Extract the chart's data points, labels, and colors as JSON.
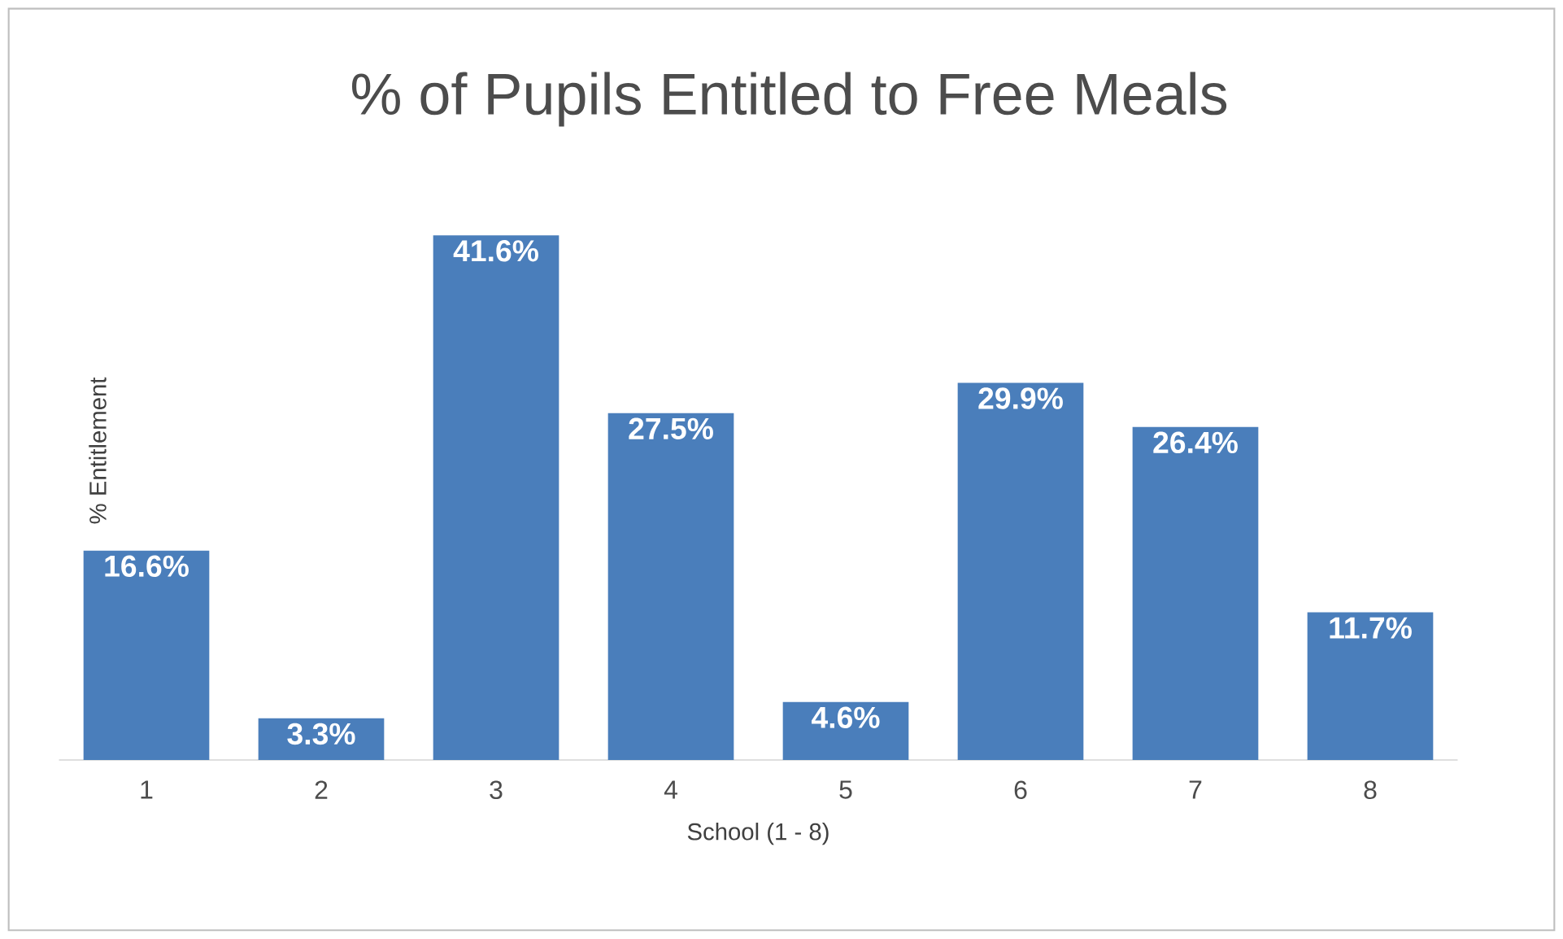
{
  "chart_data": {
    "type": "bar",
    "title": "% of Pupils Entitled to Free Meals",
    "xlabel": "School (1 - 8)",
    "ylabel": "% Entitlement",
    "categories": [
      "1",
      "2",
      "3",
      "4",
      "5",
      "6",
      "7",
      "8"
    ],
    "values": [
      16.6,
      3.3,
      41.6,
      27.5,
      4.6,
      29.9,
      26.4,
      11.7
    ],
    "value_labels": [
      "16.6%",
      "3.3%",
      "41.6%",
      "27.5%",
      "4.6%",
      "29.9%",
      "26.4%",
      "11.7%"
    ],
    "color": "#4a7ebb"
  }
}
